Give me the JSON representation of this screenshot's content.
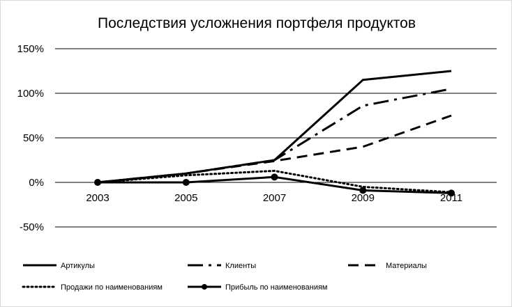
{
  "chart_data": {
    "type": "line",
    "title": "Последствия усложнения портфеля продуктов",
    "xlabel": "",
    "ylabel": "",
    "categories": [
      "2003",
      "2005",
      "2007",
      "2009",
      "2011"
    ],
    "ylim": [
      -0.5,
      1.5
    ],
    "yticks": [
      -0.5,
      0,
      0.5,
      1.0,
      1.5
    ],
    "ytick_labels": [
      "-50%",
      "0%",
      "50%",
      "100%",
      "150%"
    ],
    "grid": true,
    "legend_position": "bottom",
    "series": [
      {
        "name": "Артикулы",
        "values": [
          0,
          0.1,
          0.25,
          1.15,
          1.25
        ],
        "style": "solid",
        "color": "#000000"
      },
      {
        "name": "Клиенты",
        "values": [
          0,
          0.1,
          0.25,
          0.86,
          1.05
        ],
        "style": "dashdot",
        "color": "#000000"
      },
      {
        "name": "Материалы",
        "values": [
          0,
          0.1,
          0.24,
          0.4,
          0.75
        ],
        "style": "dashed",
        "color": "#000000"
      },
      {
        "name": "Продажи по наименованиям",
        "values": [
          0,
          0.08,
          0.13,
          -0.05,
          -0.11
        ],
        "style": "dotted",
        "color": "#000000"
      },
      {
        "name": "Прибыль по наименованиям",
        "values": [
          0,
          0.0,
          0.06,
          -0.09,
          -0.12
        ],
        "style": "solid-marker",
        "color": "#000000"
      }
    ]
  }
}
